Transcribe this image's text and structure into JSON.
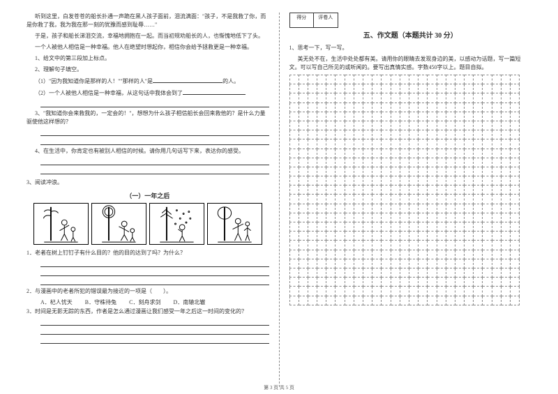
{
  "left": {
    "p1": "听到这里，白发苍苍的船长扑通一声跪在黑人孩子面前，泪流满面：\"孩子，不是我救了你，而是你救了我，我为我在那一刻的犹豫而感到耻辱……\"",
    "p2": "于是，孩子和船长涕泪交流，幸福地拥抱在一起。而当初规劝船长的人，也惭愧地低下了头。",
    "p3": "一个人被他人相信是一种幸福。他人在绝望时想起你，相信你会给予拯救更是一种幸福。",
    "q1": "1、给文中的第三段加上标点。",
    "q2": "2、理解句子填空。",
    "q2a": "（1）\"因为我知道你是那样的人！\"\"那样的人\"是",
    "q2a_tail": "的人。",
    "q2b": "（2）一个人被他人相信是一种幸福，从这句话中我体会到了",
    "q2b_tail": "。",
    "q3": "3、\"我知道你会来救我的，一定会的！\"，想想为什么孩子相信船长会回来救他的？是什么力量驱使他这样想的？",
    "q4": "4、在生活中，你肯定也有被别人相信的时候。请你用几句话写下来，表达你的感受。",
    "read_title": "3、阅读冲浪。",
    "comic_title": "（一）一年之后",
    "c1": "1．老者在树上钉钉子有什么目的？他的目的达到了吗？为什么？",
    "c2": "2．与漫画中的老者所犯的错误最为接近的一项是（　　）。",
    "optA": "A．杞人忧天",
    "optB": "B．守株待兔",
    "optC": "C．刻舟求剑",
    "optD": "D．南辕北辙",
    "c3": "3．时间是无影无踪的东西，作者是怎么通过漫画让我们感受一年之后这一时间的变化的？"
  },
  "right": {
    "score1": "得分",
    "score2": "评卷人",
    "section": "五、作文题（本题共计 30 分）",
    "t1": "1、思考一下，写一写。",
    "t2": "美无处不在，生活中处处都有美。请用你的眼睛去发现身边的美，以感动为话题，写一篇短文。可以写自己所见的或听闻的。要写出真情实感。字数450字以上。题目自拟。"
  },
  "footer": "第 3 页 共 5 页",
  "grid": {
    "rows": 25,
    "cols": 25
  }
}
